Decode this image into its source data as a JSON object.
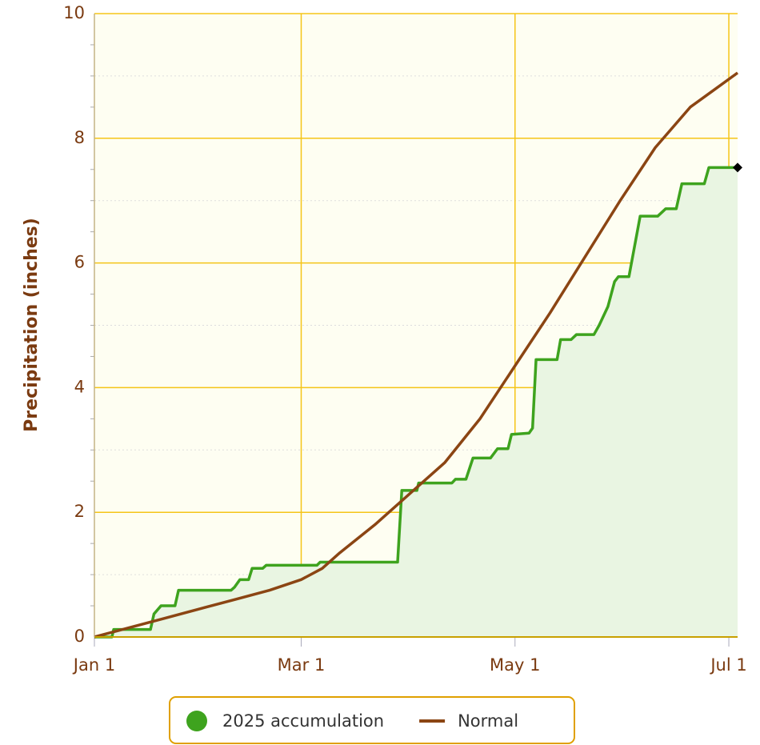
{
  "chart_data": {
    "type": "line",
    "ylabel": "Precipitation (inches)",
    "xlim": [
      0,
      183.5
    ],
    "ylim": [
      0,
      10
    ],
    "xticks": [
      {
        "value": 0,
        "label": "Jan 1"
      },
      {
        "value": 59,
        "label": "Mar 1"
      },
      {
        "value": 120,
        "label": "May 1"
      },
      {
        "value": 181,
        "label": "Jul 1"
      }
    ],
    "yticks": [
      0,
      2,
      4,
      6,
      8,
      10
    ],
    "grid": true,
    "minor_grid": true,
    "legend": "bottom",
    "series": [
      {
        "name": "2025 accumulation",
        "color": "#3ea31e",
        "fill": "#e9f5e2",
        "step": true,
        "end_marker": true,
        "x": [
          0,
          5,
          5.5,
          16,
          17,
          19,
          23,
          24,
          39,
          40,
          41.5,
          44,
          45,
          48,
          49,
          63.5,
          64.4,
          86.5,
          87.7,
          92,
          92.5,
          102,
          103,
          106,
          108,
          113,
          115,
          118,
          119,
          124,
          125,
          126,
          132,
          133,
          136,
          137.5,
          142.5,
          144,
          146.5,
          148.4,
          149.5,
          152.5,
          155.7,
          160.7,
          163,
          166,
          167.6,
          174,
          175.3,
          183.5
        ],
        "values": [
          0,
          0,
          0.12,
          0.12,
          0.37,
          0.5,
          0.5,
          0.75,
          0.75,
          0.8,
          0.92,
          0.92,
          1.1,
          1.1,
          1.15,
          1.15,
          1.2,
          1.2,
          2.35,
          2.35,
          2.47,
          2.47,
          2.53,
          2.53,
          2.87,
          2.87,
          3.02,
          3.02,
          3.25,
          3.27,
          3.35,
          4.45,
          4.45,
          4.77,
          4.77,
          4.85,
          4.85,
          5.0,
          5.3,
          5.7,
          5.78,
          5.78,
          6.75,
          6.75,
          6.87,
          6.87,
          7.27,
          7.27,
          7.53,
          7.53
        ]
      },
      {
        "name": "Normal",
        "color": "#8b4513",
        "x": [
          0,
          10,
          20,
          30,
          40,
          50,
          59,
          65,
          70,
          80,
          90,
          100,
          110,
          120,
          130,
          140,
          150,
          160,
          170,
          183.5
        ],
        "values": [
          0,
          0.15,
          0.3,
          0.45,
          0.6,
          0.75,
          0.92,
          1.1,
          1.35,
          1.8,
          2.3,
          2.8,
          3.5,
          4.35,
          5.2,
          6.1,
          7.0,
          7.85,
          8.5,
          9.05
        ]
      }
    ]
  }
}
